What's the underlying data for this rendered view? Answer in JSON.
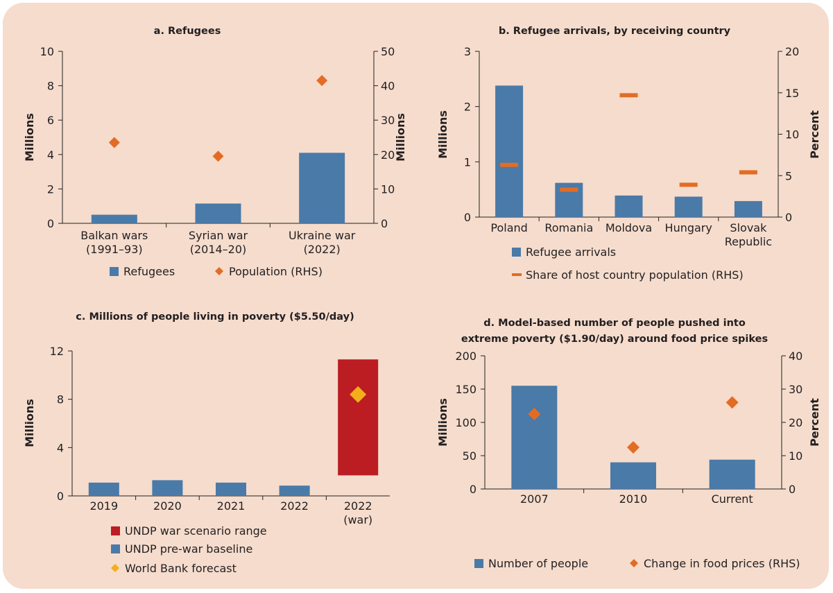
{
  "colors": {
    "bar": "#4a7aa8",
    "accent": "#e36c25",
    "range": "#bb1d23",
    "forecast": "#f3ae1b",
    "axis": "#231f20",
    "background": "#f5dccd"
  },
  "chart_data": [
    {
      "id": "a",
      "type": "bar",
      "title": "a. Refugees",
      "categories": [
        [
          "Balkan wars",
          "(1991–93)"
        ],
        [
          "Syrian war",
          "(2014–20)"
        ],
        [
          "Ukraine war",
          "(2022)"
        ]
      ],
      "ylabel": "Millions",
      "y2label": "Millions",
      "ylim": [
        0,
        10
      ],
      "yticks": [
        0,
        2,
        4,
        6,
        8,
        10
      ],
      "y2lim": [
        0,
        50
      ],
      "y2ticks": [
        0,
        10,
        20,
        30,
        40,
        50
      ],
      "series": [
        {
          "name": "Refugees",
          "kind": "bar",
          "axis": "left",
          "values": [
            0.5,
            1.15,
            4.1
          ]
        },
        {
          "name": "Population (RHS)",
          "kind": "diamond",
          "axis": "right",
          "values": [
            23.5,
            19.5,
            41.5
          ]
        }
      ],
      "legend": [
        {
          "label": "Refugees",
          "marker": "square",
          "color": "bar"
        },
        {
          "label": "Population (RHS)",
          "marker": "diamond",
          "color": "accent"
        }
      ]
    },
    {
      "id": "b",
      "type": "bar",
      "title": "b. Refugee arrivals, by receiving country",
      "categories": [
        [
          "Poland"
        ],
        [
          "Romania"
        ],
        [
          "Moldova"
        ],
        [
          "Hungary"
        ],
        [
          "Slovak",
          "Republic"
        ]
      ],
      "ylabel": "Millions",
      "y2label": "Percent",
      "ylim": [
        0,
        3
      ],
      "yticks": [
        0,
        1,
        2,
        3
      ],
      "y2lim": [
        0,
        20
      ],
      "y2ticks": [
        0,
        5,
        10,
        15,
        20
      ],
      "series": [
        {
          "name": "Refugee arrivals",
          "kind": "bar",
          "axis": "left",
          "values": [
            2.38,
            0.62,
            0.39,
            0.37,
            0.29
          ]
        },
        {
          "name": "Share of host country population (RHS)",
          "kind": "dash",
          "axis": "right",
          "values": [
            6.3,
            3.3,
            14.7,
            3.9,
            5.4
          ]
        }
      ],
      "legend": [
        {
          "label": "Refugee arrivals",
          "marker": "square",
          "color": "bar"
        },
        {
          "label": "Share of host country population (RHS)",
          "marker": "dash",
          "color": "accent"
        }
      ]
    },
    {
      "id": "c",
      "type": "bar",
      "title": "c. Millions of people living in poverty ($5.50/day)",
      "categories": [
        [
          "2019"
        ],
        [
          "2020"
        ],
        [
          "2021"
        ],
        [
          "2022"
        ],
        [
          "2022",
          "(war)"
        ]
      ],
      "ylabel": "Millions",
      "ylim": [
        0,
        12
      ],
      "yticks": [
        0,
        4,
        8,
        12
      ],
      "series": [
        {
          "name": "UNDP pre-war baseline",
          "kind": "bar",
          "axis": "left",
          "values": [
            1.1,
            1.3,
            1.1,
            0.85,
            null
          ]
        },
        {
          "name": "UNDP war scenario range",
          "kind": "range",
          "axis": "left",
          "ranges": [
            null,
            null,
            null,
            null,
            [
              1.7,
              11.3
            ]
          ]
        },
        {
          "name": "World Bank forecast",
          "kind": "diamond",
          "axis": "left",
          "values": [
            null,
            null,
            null,
            null,
            8.4
          ]
        }
      ],
      "legend": [
        {
          "label": "UNDP war scenario range",
          "marker": "square",
          "color": "range"
        },
        {
          "label": "UNDP pre-war baseline",
          "marker": "square",
          "color": "bar"
        },
        {
          "label": "World Bank forecast",
          "marker": "diamond",
          "color": "forecast"
        }
      ]
    },
    {
      "id": "d",
      "type": "bar",
      "title": "d. Model-based number of people pushed into",
      "title_line2": "extreme poverty ($1.90/day) around food price spikes",
      "categories": [
        [
          "2007"
        ],
        [
          "2010"
        ],
        [
          "Current"
        ]
      ],
      "ylabel": "Millions",
      "y2label": "Percent",
      "ylim": [
        0,
        200
      ],
      "yticks": [
        0,
        50,
        100,
        150,
        200
      ],
      "y2lim": [
        0,
        40
      ],
      "y2ticks": [
        0,
        10,
        20,
        30,
        40
      ],
      "series": [
        {
          "name": "Number of people",
          "kind": "bar",
          "axis": "left",
          "values": [
            155,
            40,
            44
          ]
        },
        {
          "name": "Change in food prices (RHS)",
          "kind": "diamond",
          "axis": "right",
          "values": [
            22.5,
            12.5,
            26
          ]
        }
      ],
      "legend": [
        {
          "label": "Number of people",
          "marker": "square",
          "color": "bar"
        },
        {
          "label": "Change in food prices (RHS)",
          "marker": "diamond",
          "color": "accent"
        }
      ]
    }
  ]
}
